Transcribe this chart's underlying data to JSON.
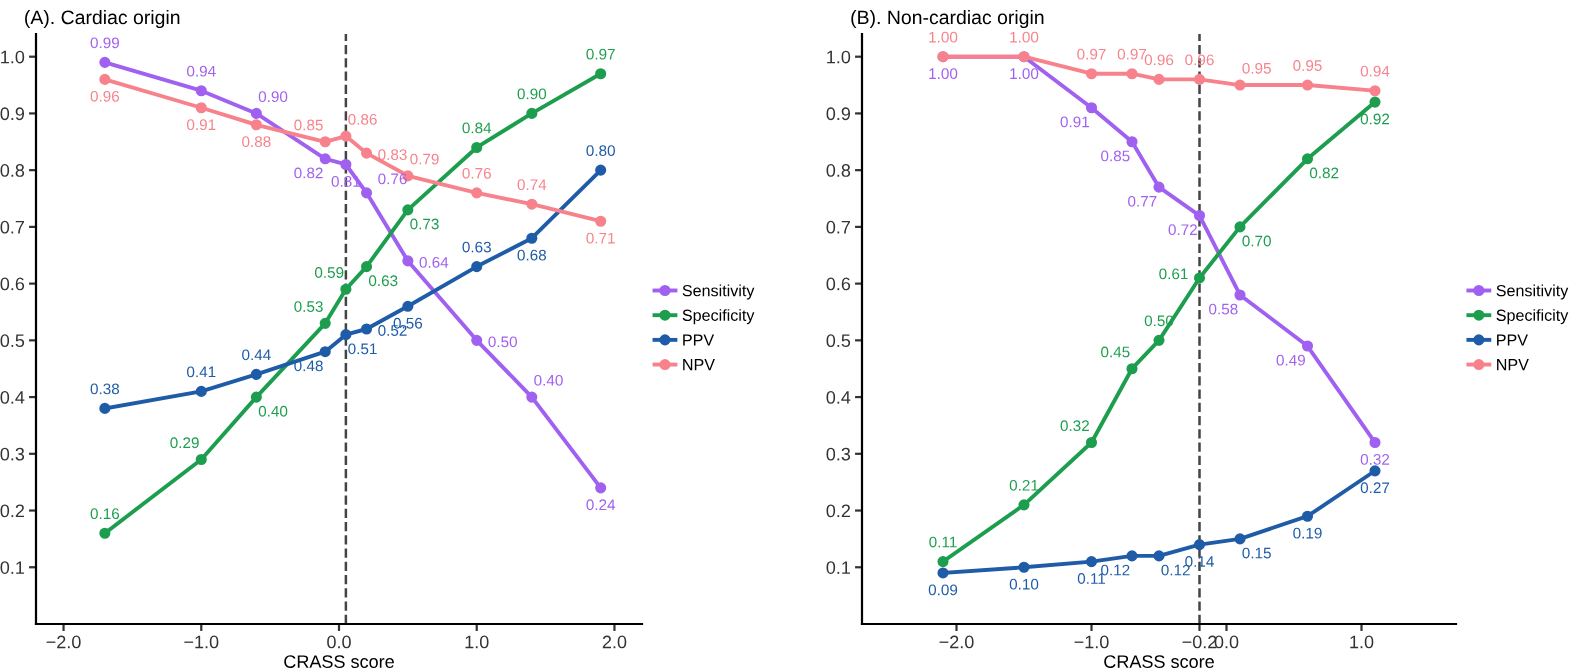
{
  "chart_data": [
    {
      "type": "line",
      "title": "(A). Cardiac origin",
      "xlabel": "CRASS score",
      "x": [
        -1.7,
        -1.0,
        -0.6,
        -0.1,
        0.05,
        0.2,
        0.5,
        1.0,
        1.4,
        1.9
      ],
      "xlim": [
        -2.2,
        2.2
      ],
      "xticks": [
        {
          "value": -2.0,
          "label": "−2.0"
        },
        {
          "value": -1.0,
          "label": "−1.0"
        },
        {
          "value": 0.0,
          "label": "0.0"
        },
        {
          "value": 1.0,
          "label": "1.0"
        },
        {
          "value": 2.0,
          "label": "2.0"
        }
      ],
      "ylim": [
        0.0,
        1.04
      ],
      "yticks": [
        0.1,
        0.2,
        0.3,
        0.4,
        0.5,
        0.6,
        0.7,
        0.8,
        0.9,
        {
          "value": 1.0,
          "label": "1.0"
        }
      ],
      "series": [
        {
          "name": "Sensitivity",
          "color": "#a060f0",
          "values": [
            0.99,
            0.94,
            0.9,
            0.82,
            0.81,
            0.76,
            0.64,
            0.5,
            0.4,
            0.24
          ],
          "value_labels": [
            "0.99",
            "0.94",
            "0.90",
            "0.82",
            "0.81",
            "0.76",
            "0.64",
            "0.50",
            "0.40",
            "0.24"
          ]
        },
        {
          "name": "Specificity",
          "color": "#1c9e4e",
          "values": [
            0.16,
            0.29,
            0.4,
            0.53,
            0.59,
            0.63,
            0.73,
            0.84,
            0.9,
            0.97
          ],
          "value_labels": [
            "0.16",
            "0.29",
            "0.40",
            "0.53",
            "0.59",
            "0.63",
            "0.73",
            "0.84",
            "0.90",
            "0.97"
          ]
        },
        {
          "name": "PPV",
          "color": "#1f5ca8",
          "values": [
            0.38,
            0.41,
            0.44,
            0.48,
            0.51,
            0.52,
            0.56,
            0.63,
            0.68,
            0.8
          ],
          "value_labels": [
            "0.38",
            "0.41",
            "0.44",
            "0.48",
            "0.51",
            "0.52",
            "0.56",
            "0.63",
            "0.68",
            "0.80"
          ]
        },
        {
          "name": "NPV",
          "color": "#f7828c",
          "values": [
            0.96,
            0.91,
            0.88,
            0.85,
            0.86,
            0.83,
            0.79,
            0.76,
            0.74,
            0.71
          ],
          "value_labels": [
            "0.96",
            "0.91",
            "0.88",
            "0.85",
            "0.86",
            "0.83",
            "0.79",
            "0.76",
            "0.74",
            "0.71"
          ]
        }
      ],
      "ref_lines": [
        {
          "axis": "x",
          "value": 0.05,
          "line_style": "dashed",
          "color": "#444444"
        }
      ],
      "marker": "circle",
      "line_style": "solid",
      "data_labels": true,
      "legend": "right",
      "grid": false
    },
    {
      "type": "line",
      "title": "(B). Non-cardiac origin",
      "xlabel": "CRASS score",
      "x": [
        -2.1,
        -1.5,
        -1.0,
        -0.7,
        -0.5,
        -0.2,
        0.1,
        0.6,
        1.1
      ],
      "xlim": [
        -2.7,
        1.7
      ],
      "xticks": [
        {
          "value": -2.0,
          "label": "−2.0"
        },
        {
          "value": -1.0,
          "label": "−1.0"
        },
        {
          "value": -0.2,
          "label": "−0.2"
        },
        {
          "value": 0.0,
          "label": "0.0"
        },
        {
          "value": 1.0,
          "label": "1.0"
        }
      ],
      "ylim": [
        0.0,
        1.04
      ],
      "yticks": [
        0.1,
        0.2,
        0.3,
        0.4,
        0.5,
        0.6,
        0.7,
        0.8,
        0.9,
        {
          "value": 1.0,
          "label": "1.0"
        }
      ],
      "series": [
        {
          "name": "Sensitivity",
          "color": "#a060f0",
          "values": [
            1.0,
            1.0,
            0.91,
            0.85,
            0.77,
            0.72,
            0.58,
            0.49,
            0.32
          ],
          "value_labels": [
            "1.00",
            "1.00",
            "0.91",
            "0.85",
            "0.77",
            "0.72",
            "0.58",
            "0.49",
            "0.32"
          ]
        },
        {
          "name": "Specificity",
          "color": "#1c9e4e",
          "values": [
            0.11,
            0.21,
            0.32,
            0.45,
            0.5,
            0.61,
            0.7,
            0.82,
            0.92
          ],
          "value_labels": [
            "0.11",
            "0.21",
            "0.32",
            "0.45",
            "0.50",
            "0.61",
            "0.70",
            "0.82",
            "0.92"
          ]
        },
        {
          "name": "PPV",
          "color": "#1f5ca8",
          "values": [
            0.09,
            0.1,
            0.11,
            0.12,
            0.12,
            0.14,
            0.15,
            0.19,
            0.27
          ],
          "value_labels": [
            "0.09",
            "0.10",
            "0.11",
            "0.12",
            "0.12",
            "0.14",
            "0.15",
            "0.19",
            "0.27"
          ]
        },
        {
          "name": "NPV",
          "color": "#f7828c",
          "values": [
            1.0,
            1.0,
            0.97,
            0.97,
            0.96,
            0.96,
            0.95,
            0.95,
            0.94
          ],
          "value_labels": [
            "1.00",
            "1.00",
            "0.97",
            "0.97",
            "0.96",
            "0.96",
            "0.95",
            "0.95",
            "0.94"
          ]
        }
      ],
      "ref_lines": [
        {
          "axis": "x",
          "value": -0.2,
          "line_style": "dashed",
          "color": "#444444"
        }
      ],
      "marker": "circle",
      "line_style": "solid",
      "data_labels": true,
      "legend": "right",
      "grid": false
    }
  ]
}
